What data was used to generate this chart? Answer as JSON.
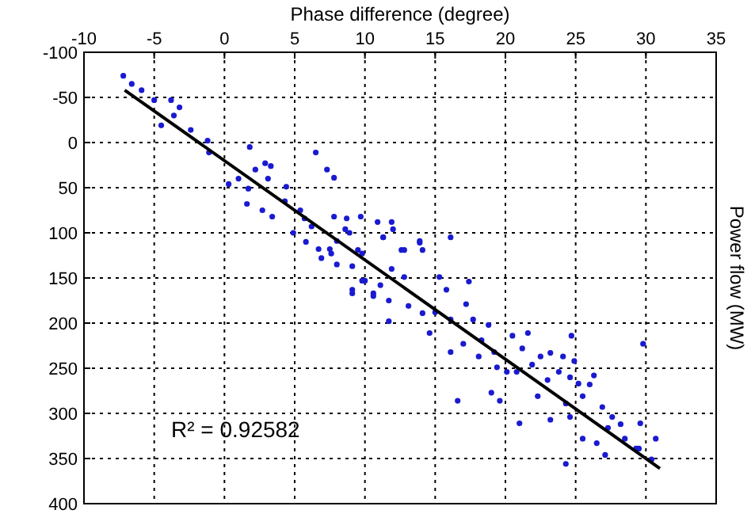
{
  "chart_data": {
    "type": "scatter",
    "xlabel": "Phase difference (degree)",
    "ylabel": "Power flow (MW)",
    "xlim": [
      -10,
      35
    ],
    "xticks": [
      -10,
      -5,
      0,
      5,
      10,
      15,
      20,
      25,
      30,
      35
    ],
    "ylim": [
      400,
      -100
    ],
    "yticks": [
      -100,
      -50,
      0,
      50,
      100,
      150,
      200,
      250,
      300,
      350,
      400
    ],
    "grid": true,
    "annotations": [
      "R² = 0.92582"
    ],
    "series": [
      {
        "marker": "circle",
        "color": "#1a1ad0",
        "x": [
          -7.2,
          -6.6,
          -5.9,
          -5.0,
          -3.8,
          -3.2,
          -3.6,
          -4.5,
          -2.4,
          -1.2,
          -1.1,
          1.8,
          0.3,
          1.0,
          1.7,
          1.6,
          2.2,
          2.9,
          3.3,
          3.1,
          2.7,
          3.4,
          4.4,
          4.3,
          4.9,
          5.4,
          6.5,
          7.3,
          7.8,
          5.7,
          6.2,
          5.8,
          6.9,
          7.5,
          8.0,
          8.6,
          8.7,
          7.8,
          9.7,
          10.9,
          11.9,
          12.0,
          11.3,
          12.8,
          13.9,
          14.1,
          9.8,
          8.0,
          9.1,
          10.0,
          11.1,
          11.9,
          12.8,
          9.1,
          10.6,
          6.7,
          7.6,
          8.9,
          9.5,
          11.3,
          12.6,
          13.9,
          16.1,
          9.1,
          9.8,
          10.6,
          11.7,
          11.7,
          13.1,
          14.1,
          15.0,
          14.6,
          15.3,
          15.8,
          17.4,
          17.2,
          16.1,
          17.7,
          18.8,
          18.3,
          17.0,
          16.1,
          18.1,
          19.2,
          19.4,
          20.1,
          16.6,
          19.0,
          19.6,
          20.5,
          21.6,
          21.2,
          21.9,
          22.5,
          20.8,
          23.2,
          24.1,
          24.9,
          23.8,
          24.6,
          25.2,
          23.0,
          22.3,
          21.0,
          23.2,
          24.3,
          24.6,
          25.5,
          26.0,
          26.3,
          25.5,
          26.5,
          27.1,
          24.3,
          26.9,
          27.6,
          28.2,
          28.5,
          29.3,
          27.3,
          24.7,
          29.8,
          30.7,
          30.4,
          29.5,
          29.6
        ],
        "values": [
          -74,
          -65,
          -58,
          -47,
          -47,
          -39,
          -30,
          -19,
          -14,
          -2,
          11,
          5,
          46,
          40,
          51,
          68,
          30,
          23,
          26,
          40,
          75,
          82,
          49,
          65,
          100,
          75,
          11,
          30,
          39,
          84,
          93,
          110,
          128,
          118,
          109,
          96,
          84,
          82,
          82,
          88,
          88,
          96,
          105,
          119,
          109,
          119,
          123,
          135,
          137,
          153,
          158,
          140,
          149,
          167,
          167,
          118,
          123,
          100,
          119,
          105,
          119,
          111,
          105,
          163,
          153,
          170,
          175,
          198,
          181,
          189,
          188,
          211,
          149,
          163,
          154,
          179,
          196,
          196,
          202,
          219,
          223,
          232,
          237,
          232,
          249,
          254,
          286,
          277,
          286,
          214,
          211,
          228,
          246,
          237,
          254,
          233,
          237,
          242,
          254,
          260,
          267,
          263,
          281,
          311,
          307,
          289,
          304,
          281,
          268,
          258,
          328,
          333,
          346,
          356,
          293,
          304,
          312,
          328,
          339,
          316,
          214,
          223,
          328,
          351,
          339,
          311
        ]
      },
      {
        "type": "line",
        "color": "#000000",
        "x": [
          -7.1,
          31
        ],
        "values": [
          -58,
          361
        ]
      }
    ]
  }
}
